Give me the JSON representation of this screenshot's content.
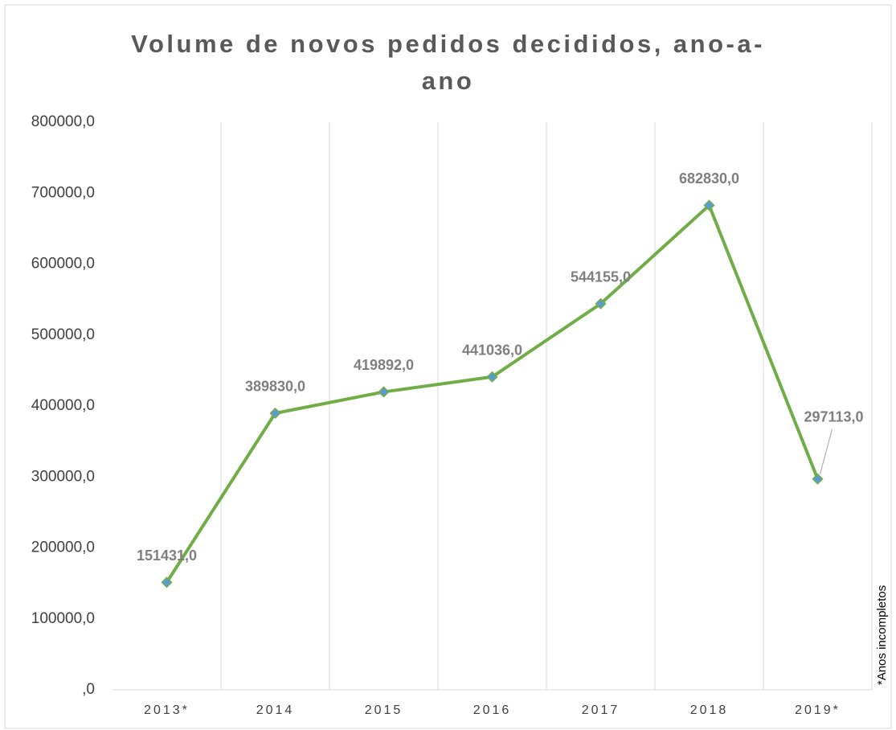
{
  "chart_data": {
    "type": "line",
    "title": "Volume de novos pedidos decididos, ano-a-ano",
    "categories": [
      "2013*",
      "2014",
      "2015",
      "2016",
      "2017",
      "2018",
      "2019*"
    ],
    "series": [
      {
        "name": "Volume",
        "color": "#70ad47",
        "marker_color": "#5b9bd5",
        "values": [
          151431,
          389830,
          419892,
          441036,
          544155,
          682830,
          297113
        ],
        "value_labels": [
          "151431,0",
          "389830,0",
          "419892,0",
          "441036,0",
          "544155,0",
          "682830,0",
          "297113,0"
        ]
      }
    ],
    "ylim": [
      0,
      800000
    ],
    "yticks": [
      {
        "value": 0,
        "label": ",0"
      },
      {
        "value": 100000,
        "label": "100000,0"
      },
      {
        "value": 200000,
        "label": "200000,0"
      },
      {
        "value": 300000,
        "label": "300000,0"
      },
      {
        "value": 400000,
        "label": "400000,0"
      },
      {
        "value": 500000,
        "label": "500000,0"
      },
      {
        "value": 600000,
        "label": "600000,0"
      },
      {
        "value": 700000,
        "label": "700000,0"
      },
      {
        "value": 800000,
        "label": "800000,0"
      }
    ],
    "annotation": "*Anos incompletos",
    "grid": false
  }
}
